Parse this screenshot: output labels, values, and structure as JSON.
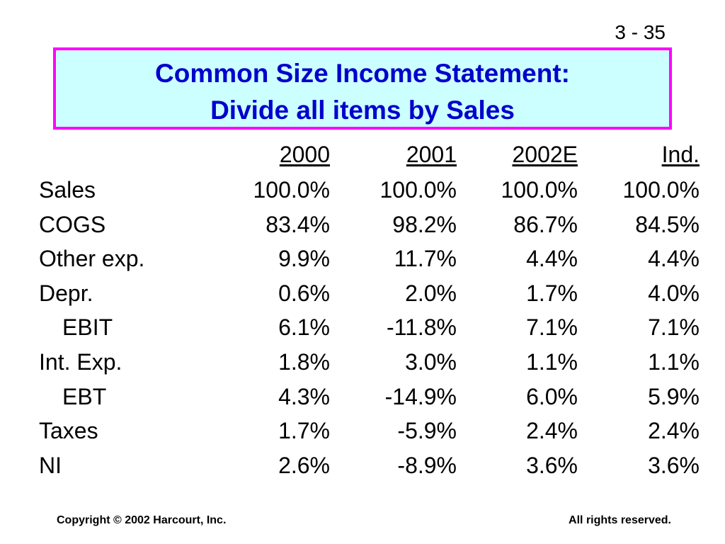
{
  "slide_number": "3 - 35",
  "title": {
    "lines": [
      "Common Size Income Statement:",
      "Divide all items by Sales"
    ]
  },
  "table": {
    "columns": [
      "2000",
      "2001",
      "2002E",
      "Ind."
    ],
    "rows": [
      {
        "label": "Sales",
        "values": [
          "100.0%",
          "100.0%",
          "100.0%",
          "100.0%"
        ]
      },
      {
        "label": "COGS",
        "values": [
          "83.4%",
          "98.2%",
          "86.7%",
          "84.5%"
        ]
      },
      {
        "label": "Other exp.",
        "values": [
          "9.9%",
          "11.7%",
          "4.4%",
          "4.4%"
        ]
      },
      {
        "label": "Depr.",
        "values": [
          "0.6%",
          "2.0%",
          "1.7%",
          "4.0%"
        ]
      },
      {
        "label": "EBIT",
        "values": [
          "6.1%",
          "-11.8%",
          "7.1%",
          "7.1%"
        ]
      },
      {
        "label": "Int. Exp.",
        "values": [
          "1.8%",
          "3.0%",
          "1.1%",
          "1.1%"
        ]
      },
      {
        "label": "EBT",
        "values": [
          "4.3%",
          "-14.9%",
          "6.0%",
          "5.9%"
        ]
      },
      {
        "label": "Taxes",
        "values": [
          "1.7%",
          "-5.9%",
          "2.4%",
          "2.4%"
        ]
      },
      {
        "label": "NI",
        "values": [
          "2.6%",
          "-8.9%",
          "3.6%",
          "3.6%"
        ]
      }
    ]
  },
  "footer": {
    "left": "Copyright © 2002 Harcourt, Inc.",
    "right": "All rights reserved."
  }
}
